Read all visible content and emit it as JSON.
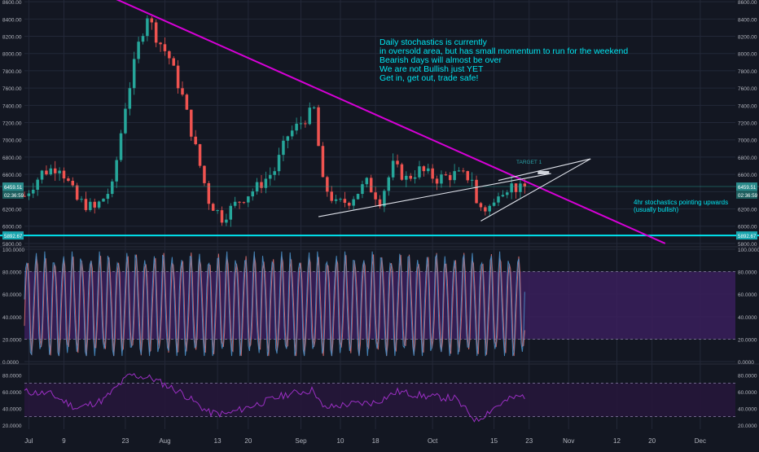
{
  "colors": {
    "background": "#131722",
    "grid": "#232838",
    "candle_up": "#26a69a",
    "candle_down": "#ef5350",
    "trendline_resistance": "#d600d6",
    "support_line": "#00e5f0",
    "stoch_k": "#4a8fc7",
    "stoch_d": "#e57373",
    "stoch_band": "#3a1f5c",
    "rsi_line": "#9b2fc4",
    "rsi_band": "#26163a",
    "annotation_text": "#00e5f0",
    "price_label_bg": "#2a8a8a"
  },
  "annotations": {
    "main": [
      "Daily stochastics is currently",
      "in oversold area, but has small momentum to run for the weekend",
      "Bearish days will almost be over",
      "We are not Bullish just YET",
      "Get in, get out, trade safe!"
    ],
    "stoch_4h": [
      "4hr stochastics pointing upwards",
      "(usually bullish)"
    ],
    "target": "TARGET 1"
  },
  "price_labels": {
    "current": "6459.51",
    "countdown": "02:36:59",
    "support": "5892.67"
  },
  "chart_data": [
    {
      "type": "candlestick",
      "panel": "price",
      "x_axis": "date (daily candles, 2018)",
      "x_tick_labels": [
        "Jul",
        "9",
        "23",
        "Aug",
        "13",
        "20",
        "Sep",
        "10",
        "18",
        "Oct",
        "15",
        "23",
        "Nov",
        "12",
        "20",
        "Dec"
      ],
      "x_tick_dates": [
        "2018-07-01",
        "2018-07-09",
        "2018-07-23",
        "2018-08-01",
        "2018-08-13",
        "2018-08-20",
        "2018-09-01",
        "2018-09-10",
        "2018-09-18",
        "2018-10-01",
        "2018-10-15",
        "2018-10-23",
        "2018-11-01",
        "2018-11-12",
        "2018-11-20",
        "2018-12-01"
      ],
      "y_tick_labels": [
        "5800.00",
        "6000.00",
        "6200.00",
        "6400.00",
        "6600.00",
        "6800.00",
        "7000.00",
        "7200.00",
        "7400.00",
        "7600.00",
        "7800.00",
        "8000.00",
        "8200.00",
        "8400.00",
        "8600.00"
      ],
      "ylim": [
        5790,
        8620
      ],
      "grid": true,
      "close_path": [
        {
          "x": "2018-06-30",
          "y": 6350
        },
        {
          "x": "2018-07-04",
          "y": 6620
        },
        {
          "x": "2018-07-08",
          "y": 6700
        },
        {
          "x": "2018-07-12",
          "y": 6300
        },
        {
          "x": "2018-07-16",
          "y": 6200
        },
        {
          "x": "2018-07-20",
          "y": 6450
        },
        {
          "x": "2018-07-23",
          "y": 7400
        },
        {
          "x": "2018-07-26",
          "y": 8100
        },
        {
          "x": "2018-07-28",
          "y": 8450
        },
        {
          "x": "2018-07-30",
          "y": 8200
        },
        {
          "x": "2018-08-02",
          "y": 7950
        },
        {
          "x": "2018-08-05",
          "y": 7500
        },
        {
          "x": "2018-08-08",
          "y": 6900
        },
        {
          "x": "2018-08-11",
          "y": 6300
        },
        {
          "x": "2018-08-14",
          "y": 6100
        },
        {
          "x": "2018-08-18",
          "y": 6300
        },
        {
          "x": "2018-08-22",
          "y": 6450
        },
        {
          "x": "2018-08-26",
          "y": 6650
        },
        {
          "x": "2018-08-29",
          "y": 7050
        },
        {
          "x": "2018-09-01",
          "y": 7200
        },
        {
          "x": "2018-09-04",
          "y": 7350
        },
        {
          "x": "2018-09-06",
          "y": 6500
        },
        {
          "x": "2018-09-09",
          "y": 6250
        },
        {
          "x": "2018-09-12",
          "y": 6300
        },
        {
          "x": "2018-09-16",
          "y": 6500
        },
        {
          "x": "2018-09-19",
          "y": 6300
        },
        {
          "x": "2018-09-22",
          "y": 6700
        },
        {
          "x": "2018-09-25",
          "y": 6550
        },
        {
          "x": "2018-09-28",
          "y": 6650
        },
        {
          "x": "2018-10-02",
          "y": 6550
        },
        {
          "x": "2018-10-06",
          "y": 6600
        },
        {
          "x": "2018-10-10",
          "y": 6560
        },
        {
          "x": "2018-10-11",
          "y": 6250
        },
        {
          "x": "2018-10-13",
          "y": 6200
        },
        {
          "x": "2018-10-15",
          "y": 6250
        },
        {
          "x": "2018-10-16",
          "y": 6420
        },
        {
          "x": "2018-10-19",
          "y": 6470
        },
        {
          "x": "2018-10-21",
          "y": 6420
        },
        {
          "x": "2018-10-22",
          "y": 6459.51
        }
      ],
      "horizontal_lines": [
        {
          "name": "current-price",
          "y": 6459.51
        },
        {
          "name": "support",
          "y": 5892.67
        }
      ],
      "trendlines": [
        {
          "name": "resistance",
          "from": {
            "x": "2018-07-20",
            "y": 8650
          },
          "to": {
            "x": "2018-11-23",
            "y": 5800
          }
        },
        {
          "name": "rising-support",
          "from": {
            "x": "2018-09-05",
            "y": 6110
          },
          "to": {
            "x": "2018-10-28",
            "y": 6610
          }
        },
        {
          "name": "wedge-lower",
          "from": {
            "x": "2018-10-12",
            "y": 6060
          },
          "to": {
            "x": "2018-11-06",
            "y": 6780
          }
        },
        {
          "name": "wedge-upper",
          "from": {
            "x": "2018-10-16",
            "y": 6530
          },
          "to": {
            "x": "2018-11-06",
            "y": 6780
          }
        }
      ],
      "target": {
        "x": "2018-10-22",
        "y": 6620
      }
    },
    {
      "type": "line",
      "panel": "stochastic",
      "y_tick_labels": [
        "0.0000",
        "20.0000",
        "40.0000",
        "60.0000",
        "80.0000",
        "100.0000"
      ],
      "ylim": [
        0,
        100
      ],
      "band": [
        20,
        80
      ],
      "last_value": 62,
      "oscillation": {
        "approx_cycles": 55,
        "from": "2018-06-30",
        "to": "2018-10-22",
        "low": 5,
        "high": 98
      }
    },
    {
      "type": "line",
      "panel": "rsi",
      "y_tick_labels": [
        "20.0000",
        "40.0000",
        "60.0000",
        "80.0000"
      ],
      "ylim": [
        15,
        90
      ],
      "band": [
        30,
        70
      ],
      "points": [
        {
          "x": "2018-06-30",
          "y": 60
        },
        {
          "x": "2018-07-06",
          "y": 57
        },
        {
          "x": "2018-07-12",
          "y": 40
        },
        {
          "x": "2018-07-18",
          "y": 50
        },
        {
          "x": "2018-07-24",
          "y": 80
        },
        {
          "x": "2018-07-29",
          "y": 76
        },
        {
          "x": "2018-08-05",
          "y": 58
        },
        {
          "x": "2018-08-11",
          "y": 35
        },
        {
          "x": "2018-08-15",
          "y": 33
        },
        {
          "x": "2018-08-22",
          "y": 45
        },
        {
          "x": "2018-08-29",
          "y": 57
        },
        {
          "x": "2018-09-04",
          "y": 62
        },
        {
          "x": "2018-09-06",
          "y": 40
        },
        {
          "x": "2018-09-12",
          "y": 45
        },
        {
          "x": "2018-09-18",
          "y": 47
        },
        {
          "x": "2018-09-23",
          "y": 60
        },
        {
          "x": "2018-09-30",
          "y": 54
        },
        {
          "x": "2018-10-06",
          "y": 52
        },
        {
          "x": "2018-10-11",
          "y": 25
        },
        {
          "x": "2018-10-15",
          "y": 41
        },
        {
          "x": "2018-10-19",
          "y": 52
        },
        {
          "x": "2018-10-22",
          "y": 55
        }
      ]
    }
  ]
}
